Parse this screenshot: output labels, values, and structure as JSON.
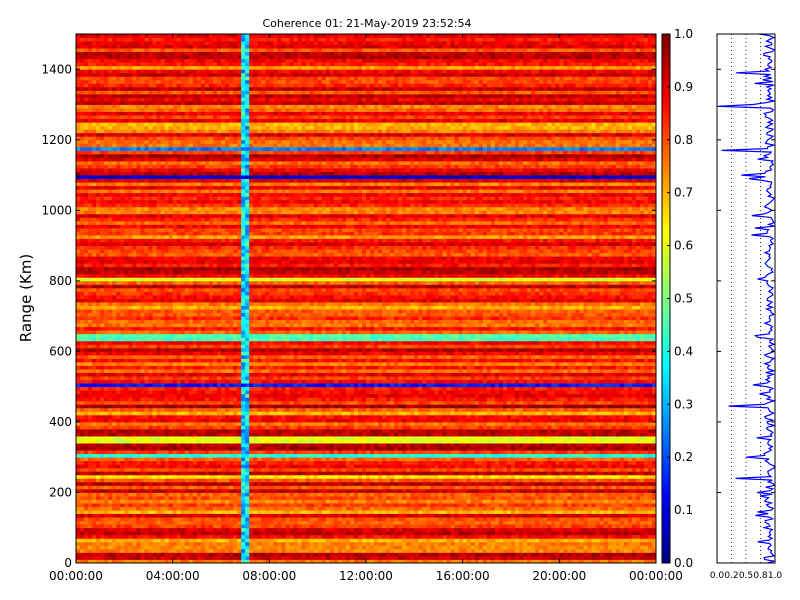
{
  "chart_data": [
    {
      "type": "heatmap",
      "title": "Coherence 01: 21-May-2019 23:52:54",
      "xlabel": "",
      "ylabel": "Range (Km)",
      "x_ticks": [
        "00:00:00",
        "04:00:00",
        "08:00:00",
        "12:00:00",
        "16:00:00",
        "20:00:00",
        "00:00:00"
      ],
      "xlim_hours": [
        0,
        24
      ],
      "y_ticks": [
        0,
        200,
        400,
        600,
        800,
        1000,
        1200,
        1400
      ],
      "ylim": [
        0,
        1500
      ],
      "colormap": "jet",
      "colorbar": {
        "ticks": [
          "0.0",
          "0.1",
          "0.2",
          "0.3",
          "0.4",
          "0.5",
          "0.6",
          "0.7",
          "0.8",
          "0.9",
          "1.0"
        ],
        "range": [
          0,
          1
        ]
      },
      "background_level": 0.85,
      "time_stripe": {
        "center_hours": 7.0,
        "width_hours": 0.5,
        "level": 0.35
      },
      "range_bands": [
        {
          "range_km": 1172,
          "level": 0.25
        },
        {
          "range_km": 1098,
          "level": 0.08
        },
        {
          "range_km": 805,
          "level": 0.6
        },
        {
          "range_km": 725,
          "level": 0.7
        },
        {
          "range_km": 640,
          "level": 0.45
        },
        {
          "range_km": 505,
          "level": 0.15
        },
        {
          "range_km": 423,
          "level": 0.7
        },
        {
          "range_km": 350,
          "level": 0.6
        },
        {
          "range_km": 303,
          "level": 0.4
        },
        {
          "range_km": 245,
          "level": 0.65
        },
        {
          "range_km": 145,
          "level": 0.7
        },
        {
          "range_km": 65,
          "level": 0.7
        },
        {
          "range_km": 1240,
          "level": 0.7
        },
        {
          "range_km": 1405,
          "level": 0.72
        },
        {
          "range_km": 925,
          "level": 0.72
        }
      ]
    },
    {
      "type": "line",
      "title": "",
      "x_ticks": [
        "0.0",
        "0.2",
        "0.5",
        "0.8",
        "1.0"
      ],
      "x_tick_values": [
        0,
        0.25,
        0.5,
        0.75,
        1.0
      ],
      "xlim": [
        0,
        1
      ],
      "ylim": [
        0,
        1500
      ],
      "grid_x_dotted": [
        0.25,
        0.5,
        0.75
      ],
      "color": "#0000ff",
      "baseline": 0.9,
      "spikes": [
        {
          "range_km": 1390,
          "value": 0.33
        },
        {
          "range_km": 1300,
          "value": 0.62
        },
        {
          "range_km": 1296,
          "value": 0.0
        },
        {
          "range_km": 1172,
          "value": 0.08
        },
        {
          "range_km": 1100,
          "value": 0.42
        },
        {
          "range_km": 1090,
          "value": 0.55
        },
        {
          "range_km": 985,
          "value": 0.6
        },
        {
          "range_km": 805,
          "value": 0.7
        },
        {
          "range_km": 640,
          "value": 0.7
        },
        {
          "range_km": 505,
          "value": 0.62
        },
        {
          "range_km": 445,
          "value": 0.2
        },
        {
          "range_km": 300,
          "value": 0.5
        },
        {
          "range_km": 240,
          "value": 0.32
        },
        {
          "range_km": 145,
          "value": 0.7
        },
        {
          "range_km": 62,
          "value": 0.7
        }
      ]
    }
  ]
}
